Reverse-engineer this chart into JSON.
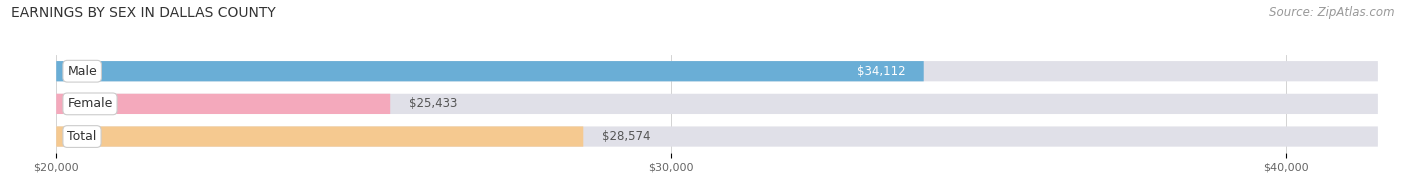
{
  "title": "EARNINGS BY SEX IN DALLAS COUNTY",
  "source": "Source: ZipAtlas.com",
  "categories": [
    "Male",
    "Female",
    "Total"
  ],
  "values": [
    34112,
    25433,
    28574
  ],
  "bar_colors": [
    "#6aaed6",
    "#f4a9bc",
    "#f5c990"
  ],
  "bar_bg_color": "#e0e0e8",
  "xlim": [
    20000,
    41500
  ],
  "xticks": [
    20000,
    30000,
    40000
  ],
  "xtick_labels": [
    "$20,000",
    "$30,000",
    "$40,000"
  ],
  "title_fontsize": 10,
  "source_fontsize": 8.5,
  "bar_label_fontsize": 8.5,
  "category_fontsize": 9,
  "background_color": "#ffffff",
  "bar_height": 0.62,
  "figsize": [
    14.06,
    1.96
  ],
  "dpi": 100
}
